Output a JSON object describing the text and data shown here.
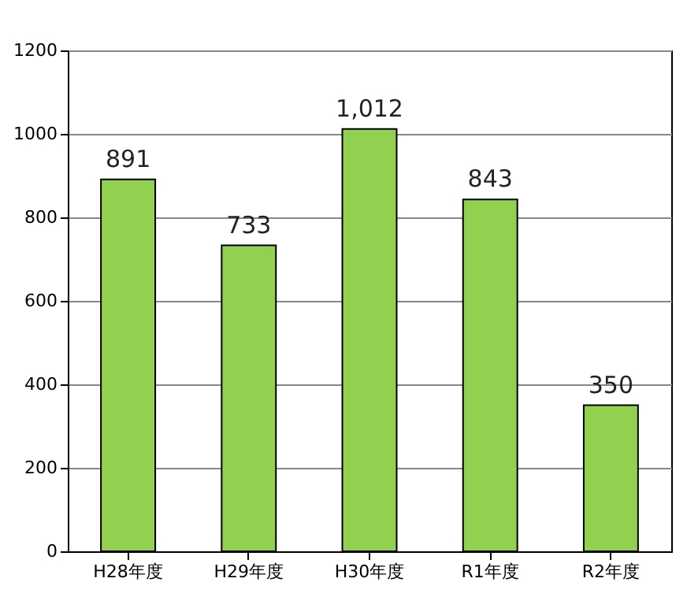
{
  "chart_data": {
    "type": "bar",
    "categories": [
      "H28年度",
      "H29年度",
      "H30年度",
      "R1年度",
      "R2年度"
    ],
    "values": [
      891,
      733,
      1012,
      843,
      350
    ],
    "value_labels": [
      "891",
      "733",
      "1,012",
      "843",
      "350"
    ],
    "color": "#92d050",
    "ylim": [
      0,
      1200
    ],
    "yticks": [
      0,
      200,
      400,
      600,
      800,
      1000,
      1200
    ],
    "grid": "y"
  }
}
